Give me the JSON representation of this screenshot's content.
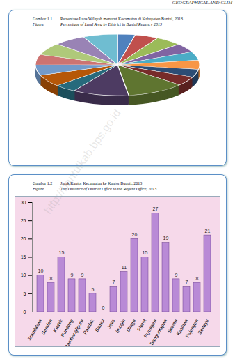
{
  "header": "GEOGRAPHICAL AND CLIM",
  "watermark": "http://bantulkab.bps.go.id",
  "chart_data": [
    {
      "type": "pie",
      "annotations": [
        "Gambar 1.1",
        "Figure"
      ],
      "title": "Persentase Luas Wilayah menurut Kecamatan di Kabupaten Bantul, 2013",
      "subtitle": "Percentage of Land Area by District in Bantul Regency 2013",
      "categories": [
        null,
        null,
        null,
        null,
        null,
        null,
        null,
        null,
        null,
        null,
        null,
        null,
        null,
        null,
        null,
        null,
        null
      ],
      "values": [
        3.46,
        4.58,
        5.27,
        4.66,
        4.5,
        4.8,
        4.16,
        4.76,
        11.45,
        11.03,
        4.24,
        6.29,
        5.63,
        5.3,
        6.38,
        6.34,
        6.75
      ],
      "colors": [
        "#4f81bd",
        "#c0504d",
        "#9bbb59",
        "#8064a2",
        "#4bacc6",
        "#f79646",
        "#2c4d75",
        "#772c2a",
        "#5f7530",
        "#4d3b62",
        "#276a7c",
        "#b65708",
        "#729aca",
        "#cd7371",
        "#afc97a",
        "#9983b5",
        "#6fbdd1"
      ]
    },
    {
      "type": "bar",
      "annotations": [
        "Gambar 1.2",
        "Figure"
      ],
      "title": "Jarak Kantor Kecamatan ke Kantor Bupati, 2013",
      "subtitle": "The Distance of District Office to the Regent Office, 2013",
      "categories": [
        "Srandakan",
        "Sanden",
        "Kretek",
        "Pundong",
        "Bambanglipuro",
        "Pandak",
        "Bantul",
        "Jetis",
        "Imogiri",
        "Dlingo",
        "Pleret",
        "Piyungan",
        "Banguntapan",
        "Sewon",
        "Kasihan",
        "Pajangan",
        "Sedayu"
      ],
      "values": [
        10,
        8,
        15,
        9,
        9,
        5,
        0,
        7,
        11,
        20,
        15,
        27,
        19,
        9,
        7,
        8,
        21
      ],
      "color": "#b98ad6",
      "ylim": [
        0,
        30
      ],
      "yticks": [
        0,
        5,
        10,
        15,
        20,
        25,
        30
      ],
      "grid": false,
      "data_labels": true
    }
  ]
}
